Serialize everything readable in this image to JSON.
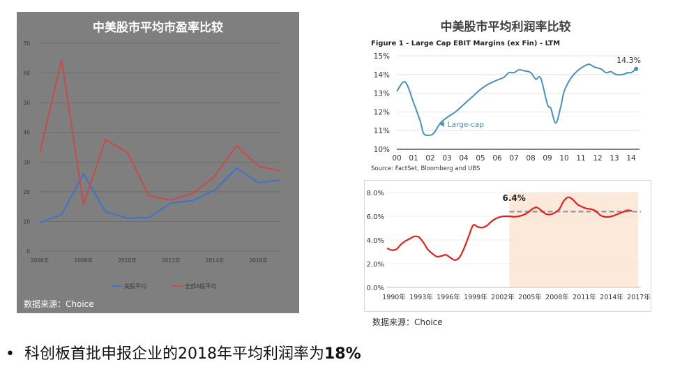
{
  "left_chart": {
    "title": "中美股市平均市盈率比较",
    "source": "数据来源：Choice"
  },
  "right_header": {
    "title": "中美股市平均利润率比较"
  },
  "fig1": {
    "title": "Figure 1 - Large Cap EBIT Margins (ex Fin) - LTM",
    "source": "Source:  FactSet, Bloomberg and UBS"
  },
  "bottom_chart": {
    "source": "数据来源：Choice"
  },
  "bullet": {
    "marker": "•",
    "text": "科创板首批申报企业的2018年平均利润率为",
    "bold": "18%"
  },
  "chart_data": [
    {
      "type": "line",
      "title": "中美股市平均市盈率比较",
      "x": [
        2006,
        2007,
        2008,
        2009,
        2010,
        2011,
        2012,
        2013,
        2014,
        2015,
        2016,
        2017
      ],
      "x_tick_labels": [
        "2006年",
        "2008年",
        "2010年",
        "2012年",
        "2014年",
        "2016年"
      ],
      "x_tick_values": [
        2006,
        2008,
        2010,
        2012,
        2014,
        2016
      ],
      "ylim": [
        0,
        70
      ],
      "y_ticks": [
        0,
        10,
        20,
        30,
        40,
        50,
        60,
        70
      ],
      "grid": true,
      "legend_position": "bottom",
      "series": [
        {
          "name": "美股平均",
          "color": "#4472c4",
          "values": [
            9.6,
            12.3,
            26,
            13.3,
            11.1,
            11.3,
            16.2,
            17,
            20.5,
            28,
            23.1,
            23.9
          ]
        },
        {
          "name": "全部A股平均",
          "color": "#c0504d",
          "values": [
            33,
            64.5,
            15.7,
            37.5,
            33.3,
            18.5,
            17.2,
            19.4,
            25.2,
            35.5,
            28.6,
            27
          ]
        }
      ]
    },
    {
      "type": "line",
      "title": "Figure 1 - Large Cap EBIT Margins (ex Fin) - LTM",
      "x_tick_labels": [
        "00",
        "01",
        "02",
        "03",
        "04",
        "05",
        "06",
        "07",
        "08",
        "09",
        "10",
        "11",
        "12",
        "13",
        "14"
      ],
      "xlim": [
        2000,
        2014.5
      ],
      "ylim": [
        10,
        15
      ],
      "y_ticks": [
        10,
        11,
        12,
        13,
        14,
        15
      ],
      "y_tick_labels": [
        "10%",
        "11%",
        "12%",
        "13%",
        "14%",
        "15%"
      ],
      "grid": true,
      "annotations": [
        {
          "text": "14.3%",
          "x": 2014.3,
          "y": 14.3
        },
        {
          "text": "Large-cap",
          "x": 2003.2,
          "y": 11.35
        }
      ],
      "series": [
        {
          "name": "Large-cap",
          "color": "#4a90b8",
          "points": [
            [
              2000.0,
              13.1
            ],
            [
              2000.5,
              13.6
            ],
            [
              2001.0,
              12.5
            ],
            [
              2001.4,
              11.5
            ],
            [
              2001.6,
              10.85
            ],
            [
              2001.9,
              10.75
            ],
            [
              2002.2,
              10.85
            ],
            [
              2002.6,
              11.4
            ],
            [
              2003.0,
              11.7
            ],
            [
              2003.5,
              12.0
            ],
            [
              2004.0,
              12.4
            ],
            [
              2004.5,
              12.8
            ],
            [
              2005.0,
              13.2
            ],
            [
              2005.5,
              13.5
            ],
            [
              2006.0,
              13.7
            ],
            [
              2006.4,
              13.85
            ],
            [
              2006.7,
              14.1
            ],
            [
              2007.0,
              14.1
            ],
            [
              2007.3,
              14.25
            ],
            [
              2007.6,
              14.2
            ],
            [
              2008.0,
              14.1
            ],
            [
              2008.3,
              13.75
            ],
            [
              2008.6,
              13.8
            ],
            [
              2009.0,
              12.4
            ],
            [
              2009.2,
              12.2
            ],
            [
              2009.5,
              11.4
            ],
            [
              2009.8,
              12.3
            ],
            [
              2010.0,
              13.1
            ],
            [
              2010.4,
              13.8
            ],
            [
              2010.8,
              14.2
            ],
            [
              2011.2,
              14.45
            ],
            [
              2011.5,
              14.55
            ],
            [
              2011.8,
              14.4
            ],
            [
              2012.2,
              14.3
            ],
            [
              2012.5,
              14.1
            ],
            [
              2012.8,
              14.15
            ],
            [
              2013.1,
              14.0
            ],
            [
              2013.5,
              14.0
            ],
            [
              2013.8,
              14.1
            ],
            [
              2014.0,
              14.1
            ],
            [
              2014.3,
              14.3
            ]
          ]
        }
      ]
    },
    {
      "type": "line",
      "x_tick_labels": [
        "1990年",
        "1993年",
        "1996年",
        "1999年",
        "2002年",
        "2005年",
        "2008年",
        "2011年",
        "2014年",
        "2017年"
      ],
      "x_tick_values": [
        1990,
        1993,
        1996,
        1999,
        2002,
        2005,
        2008,
        2011,
        2014,
        2017
      ],
      "xlim": [
        1990,
        2018
      ],
      "ylim": [
        0,
        8
      ],
      "y_ticks": [
        0,
        2,
        4,
        6,
        8
      ],
      "y_tick_labels": [
        "0.0%",
        "2.0%",
        "4.0%",
        "6.0%",
        "8.0%"
      ],
      "grid": true,
      "shaded_region": {
        "x_from": 2003.5,
        "x_to": 2017.7,
        "color": "#fde9d9"
      },
      "reference_line": {
        "y": 6.4,
        "label": "6.4%",
        "x_from": 2003.5,
        "x_to": 2018,
        "color": "#999999"
      },
      "series": [
        {
          "name": "",
          "color": "#e02020",
          "points": [
            [
              1990.0,
              3.3
            ],
            [
              1990.5,
              3.15
            ],
            [
              1991.0,
              3.2
            ],
            [
              1991.5,
              3.6
            ],
            [
              1992.0,
              3.9
            ],
            [
              1992.5,
              4.1
            ],
            [
              1993.0,
              4.3
            ],
            [
              1993.5,
              4.25
            ],
            [
              1994.0,
              3.8
            ],
            [
              1994.5,
              3.2
            ],
            [
              1995.0,
              2.85
            ],
            [
              1995.5,
              2.6
            ],
            [
              1996.0,
              2.65
            ],
            [
              1996.5,
              2.75
            ],
            [
              1997.0,
              2.5
            ],
            [
              1997.5,
              2.3
            ],
            [
              1998.0,
              2.55
            ],
            [
              1998.5,
              3.3
            ],
            [
              1999.0,
              4.3
            ],
            [
              1999.5,
              5.25
            ],
            [
              2000.0,
              5.1
            ],
            [
              2000.5,
              5.05
            ],
            [
              2001.0,
              5.2
            ],
            [
              2001.5,
              5.55
            ],
            [
              2002.0,
              5.8
            ],
            [
              2002.5,
              5.95
            ],
            [
              2003.0,
              6.0
            ],
            [
              2003.5,
              6.0
            ],
            [
              2004.0,
              5.95
            ],
            [
              2004.5,
              6.0
            ],
            [
              2005.0,
              6.1
            ],
            [
              2005.5,
              6.3
            ],
            [
              2006.0,
              6.6
            ],
            [
              2006.5,
              6.75
            ],
            [
              2007.0,
              6.5
            ],
            [
              2007.5,
              6.2
            ],
            [
              2008.0,
              6.15
            ],
            [
              2008.5,
              6.3
            ],
            [
              2009.0,
              6.6
            ],
            [
              2009.5,
              7.3
            ],
            [
              2010.0,
              7.6
            ],
            [
              2010.5,
              7.4
            ],
            [
              2011.0,
              7.0
            ],
            [
              2011.5,
              6.8
            ],
            [
              2012.0,
              6.65
            ],
            [
              2012.5,
              6.6
            ],
            [
              2013.0,
              6.45
            ],
            [
              2013.5,
              6.1
            ],
            [
              2014.0,
              5.95
            ],
            [
              2014.5,
              5.95
            ],
            [
              2015.0,
              6.05
            ],
            [
              2015.5,
              6.2
            ],
            [
              2016.0,
              6.35
            ],
            [
              2016.5,
              6.5
            ],
            [
              2017.0,
              6.45
            ]
          ]
        }
      ]
    }
  ]
}
